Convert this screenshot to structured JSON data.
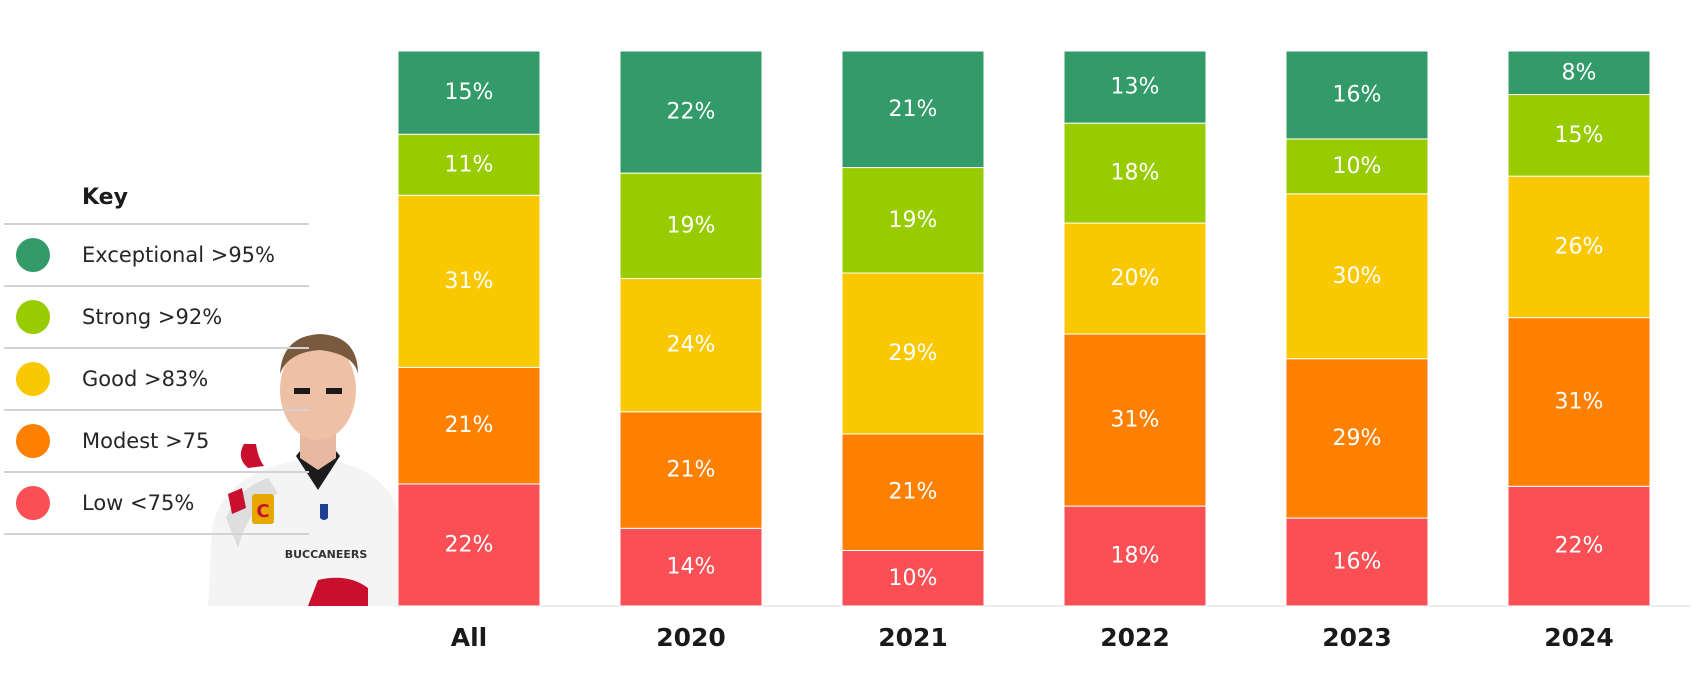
{
  "chart_data": {
    "type": "bar",
    "stacked": true,
    "normalized": true,
    "categories": [
      "All",
      "2020",
      "2021",
      "2022",
      "2023",
      "2024"
    ],
    "series": [
      {
        "name": "Low <75%",
        "color": "#fa4f55",
        "values": [
          22,
          14,
          10,
          18,
          16,
          22
        ]
      },
      {
        "name": "Modest >75",
        "color": "#fe8001",
        "values": [
          21,
          21,
          21,
          31,
          29,
          31
        ]
      },
      {
        "name": "Good >83%",
        "color": "#fac800",
        "values": [
          31,
          24,
          29,
          20,
          30,
          26
        ]
      },
      {
        "name": "Strong >92%",
        "color": "#98cc00",
        "values": [
          11,
          19,
          19,
          18,
          10,
          15
        ]
      },
      {
        "name": "Exceptional >95%",
        "color": "#339b69",
        "values": [
          15,
          22,
          21,
          13,
          16,
          8
        ]
      }
    ],
    "value_suffix": "%",
    "legend_position": "left",
    "grid": false
  },
  "legend": {
    "title": "Key",
    "items": [
      {
        "label": "Exceptional >95%",
        "color": "#339b69"
      },
      {
        "label": "Strong >92%",
        "color": "#98cc00"
      },
      {
        "label": "Good >83%",
        "color": "#fac800"
      },
      {
        "label": "Modest >75",
        "color": "#fe8001"
      },
      {
        "label": "Low <75%",
        "color": "#fa4f55"
      }
    ]
  },
  "photo": {
    "jersey_text": "BUCCANEERS",
    "captain_patch": "C"
  }
}
